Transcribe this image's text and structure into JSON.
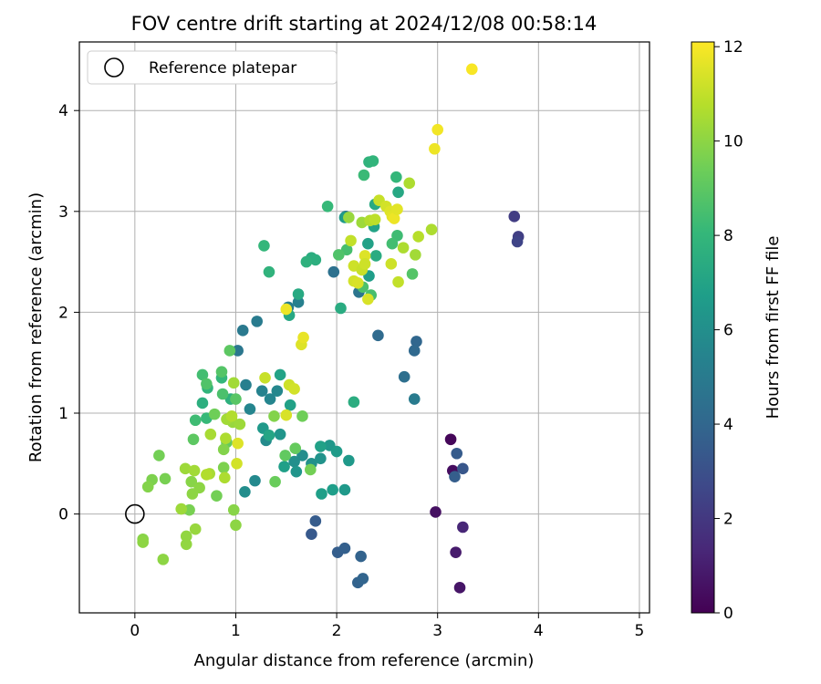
{
  "chart_data": {
    "type": "scatter",
    "title": "FOV centre drift starting at 2024/12/08 00:58:14",
    "xlabel": "Angular distance from reference (arcmin)",
    "ylabel": "Rotation from reference (arcmin)",
    "xlim": [
      -0.55,
      5.1
    ],
    "ylim": [
      -0.98,
      4.68
    ],
    "xticks": [
      "0",
      "1",
      "2",
      "3",
      "4",
      "5"
    ],
    "yticks": [
      "0",
      "1",
      "2",
      "3",
      "4"
    ],
    "grid": true,
    "legend": {
      "placement": "top-left",
      "label": "Reference platepar"
    },
    "reference_point": {
      "x": 0,
      "y": 0
    },
    "colorbar": {
      "label": "Hours from first FF file",
      "min": 0,
      "max": 12.1,
      "ticks": [
        "0",
        "2",
        "4",
        "6",
        "8",
        "10",
        "12"
      ],
      "colormap": [
        "#440154",
        "#482878",
        "#3e4989",
        "#31688e",
        "#26828e",
        "#1f9e89",
        "#35b779",
        "#6ece58",
        "#b5de2b",
        "#fde725"
      ]
    },
    "points": [
      {
        "x": 3.13,
        "y": 0.74,
        "t": 0.2
      },
      {
        "x": 3.15,
        "y": 0.43,
        "t": 0.4
      },
      {
        "x": 2.98,
        "y": 0.02,
        "t": 0.5
      },
      {
        "x": 3.22,
        "y": -0.73,
        "t": 0.7
      },
      {
        "x": 3.18,
        "y": -0.38,
        "t": 0.9
      },
      {
        "x": 3.25,
        "y": -0.13,
        "t": 1.3
      },
      {
        "x": 3.76,
        "y": 2.95,
        "t": 2.2
      },
      {
        "x": 3.8,
        "y": 2.75,
        "t": 2.3
      },
      {
        "x": 3.79,
        "y": 2.7,
        "t": 2.5
      },
      {
        "x": 3.25,
        "y": 0.45,
        "t": 3.3
      },
      {
        "x": 3.19,
        "y": 0.6,
        "t": 3.5
      },
      {
        "x": 3.17,
        "y": 0.37,
        "t": 3.6
      },
      {
        "x": 1.75,
        "y": -0.2,
        "t": 3.4
      },
      {
        "x": 1.79,
        "y": -0.07,
        "t": 3.5
      },
      {
        "x": 2.01,
        "y": -0.38,
        "t": 3.6
      },
      {
        "x": 2.08,
        "y": -0.34,
        "t": 3.7
      },
      {
        "x": 2.21,
        "y": -0.68,
        "t": 3.8
      },
      {
        "x": 2.26,
        "y": -0.64,
        "t": 3.9
      },
      {
        "x": 2.24,
        "y": -0.42,
        "t": 3.8
      },
      {
        "x": 2.79,
        "y": 1.71,
        "t": 4.0
      },
      {
        "x": 2.77,
        "y": 1.62,
        "t": 4.1
      },
      {
        "x": 2.41,
        "y": 1.77,
        "t": 4.2
      },
      {
        "x": 2.67,
        "y": 1.36,
        "t": 4.4
      },
      {
        "x": 2.77,
        "y": 1.14,
        "t": 5.0
      },
      {
        "x": 1.97,
        "y": 2.4,
        "t": 4.5
      },
      {
        "x": 2.22,
        "y": 2.2,
        "t": 4.7
      },
      {
        "x": 2.09,
        "y": 2.95,
        "t": 4.6
      },
      {
        "x": 1.02,
        "y": 1.62,
        "t": 4.8
      },
      {
        "x": 1.07,
        "y": 1.82,
        "t": 4.9
      },
      {
        "x": 1.21,
        "y": 1.91,
        "t": 5.0
      },
      {
        "x": 1.52,
        "y": 2.05,
        "t": 5.1
      },
      {
        "x": 1.62,
        "y": 2.1,
        "t": 5.3
      },
      {
        "x": 1.1,
        "y": 1.28,
        "t": 5.2
      },
      {
        "x": 1.26,
        "y": 1.22,
        "t": 5.4
      },
      {
        "x": 1.34,
        "y": 1.14,
        "t": 5.5
      },
      {
        "x": 1.41,
        "y": 1.22,
        "t": 5.6
      },
      {
        "x": 1.14,
        "y": 1.04,
        "t": 5.5
      },
      {
        "x": 1.3,
        "y": 0.73,
        "t": 5.8
      },
      {
        "x": 1.19,
        "y": 0.33,
        "t": 5.7
      },
      {
        "x": 1.09,
        "y": 0.22,
        "t": 5.9
      },
      {
        "x": 1.58,
        "y": 0.52,
        "t": 6.0
      },
      {
        "x": 1.66,
        "y": 0.58,
        "t": 5.9
      },
      {
        "x": 1.75,
        "y": 0.5,
        "t": 6.1
      },
      {
        "x": 1.6,
        "y": 0.42,
        "t": 6.3
      },
      {
        "x": 1.84,
        "y": 0.55,
        "t": 6.2
      },
      {
        "x": 1.93,
        "y": 0.68,
        "t": 6.4
      },
      {
        "x": 2.12,
        "y": 0.53,
        "t": 6.5
      },
      {
        "x": 2.0,
        "y": 0.62,
        "t": 6.6
      },
      {
        "x": 1.96,
        "y": 0.24,
        "t": 6.7
      },
      {
        "x": 2.08,
        "y": 0.24,
        "t": 6.5
      },
      {
        "x": 1.85,
        "y": 0.2,
        "t": 6.8
      },
      {
        "x": 1.84,
        "y": 0.67,
        "t": 6.9
      },
      {
        "x": 1.48,
        "y": 0.47,
        "t": 6.8
      },
      {
        "x": 1.54,
        "y": 1.08,
        "t": 6.9
      },
      {
        "x": 1.44,
        "y": 0.79,
        "t": 6.3
      },
      {
        "x": 1.27,
        "y": 0.85,
        "t": 6.5
      },
      {
        "x": 1.44,
        "y": 1.38,
        "t": 7.0
      },
      {
        "x": 1.33,
        "y": 0.78,
        "t": 7.1
      },
      {
        "x": 1.53,
        "y": 1.97,
        "t": 7.2
      },
      {
        "x": 1.62,
        "y": 2.18,
        "t": 7.3
      },
      {
        "x": 2.04,
        "y": 2.04,
        "t": 7.4
      },
      {
        "x": 2.17,
        "y": 1.11,
        "t": 7.5
      },
      {
        "x": 2.32,
        "y": 2.36,
        "t": 6.7
      },
      {
        "x": 2.08,
        "y": 2.94,
        "t": 6.6
      },
      {
        "x": 2.31,
        "y": 2.68,
        "t": 6.9
      },
      {
        "x": 2.37,
        "y": 2.85,
        "t": 7.0
      },
      {
        "x": 2.61,
        "y": 3.19,
        "t": 7.2
      },
      {
        "x": 2.38,
        "y": 3.07,
        "t": 7.3
      },
      {
        "x": 2.39,
        "y": 2.56,
        "t": 7.4
      },
      {
        "x": 1.75,
        "y": 2.54,
        "t": 7.5
      },
      {
        "x": 1.79,
        "y": 2.52,
        "t": 7.6
      },
      {
        "x": 1.7,
        "y": 2.5,
        "t": 7.7
      },
      {
        "x": 2.32,
        "y": 3.49,
        "t": 7.8
      },
      {
        "x": 2.36,
        "y": 3.5,
        "t": 7.9
      },
      {
        "x": 2.59,
        "y": 3.34,
        "t": 8.0
      },
      {
        "x": 2.27,
        "y": 3.36,
        "t": 8.2
      },
      {
        "x": 2.6,
        "y": 2.76,
        "t": 8.3
      },
      {
        "x": 2.55,
        "y": 2.68,
        "t": 8.4
      },
      {
        "x": 2.34,
        "y": 2.17,
        "t": 8.5
      },
      {
        "x": 2.26,
        "y": 2.25,
        "t": 8.6
      },
      {
        "x": 1.33,
        "y": 2.4,
        "t": 7.8
      },
      {
        "x": 1.28,
        "y": 2.66,
        "t": 8.0
      },
      {
        "x": 1.91,
        "y": 3.05,
        "t": 8.1
      },
      {
        "x": 2.1,
        "y": 2.62,
        "t": 8.5
      },
      {
        "x": 2.02,
        "y": 2.57,
        "t": 8.7
      },
      {
        "x": 2.75,
        "y": 2.38,
        "t": 8.8
      },
      {
        "x": 0.72,
        "y": 1.25,
        "t": 7.9
      },
      {
        "x": 0.67,
        "y": 1.1,
        "t": 7.6
      },
      {
        "x": 0.86,
        "y": 1.35,
        "t": 8.0
      },
      {
        "x": 0.71,
        "y": 0.95,
        "t": 8.1
      },
      {
        "x": 0.95,
        "y": 1.14,
        "t": 7.7
      },
      {
        "x": 0.6,
        "y": 0.93,
        "t": 8.3
      },
      {
        "x": 0.67,
        "y": 1.38,
        "t": 8.4
      },
      {
        "x": 0.87,
        "y": 1.19,
        "t": 8.6
      },
      {
        "x": 0.71,
        "y": 1.29,
        "t": 8.7
      },
      {
        "x": 0.86,
        "y": 1.41,
        "t": 8.8
      },
      {
        "x": 1.0,
        "y": 1.14,
        "t": 8.9
      },
      {
        "x": 0.94,
        "y": 1.62,
        "t": 9.0
      },
      {
        "x": 1.49,
        "y": 0.58,
        "t": 9.1
      },
      {
        "x": 1.59,
        "y": 0.65,
        "t": 9.2
      },
      {
        "x": 1.39,
        "y": 0.32,
        "t": 9.3
      },
      {
        "x": 1.66,
        "y": 0.97,
        "t": 9.4
      },
      {
        "x": 1.74,
        "y": 0.44,
        "t": 9.5
      },
      {
        "x": 0.58,
        "y": 0.74,
        "t": 9.0
      },
      {
        "x": 0.91,
        "y": 0.71,
        "t": 9.2
      },
      {
        "x": 0.79,
        "y": 0.99,
        "t": 9.4
      },
      {
        "x": 0.81,
        "y": 0.18,
        "t": 9.5
      },
      {
        "x": 0.54,
        "y": 0.04,
        "t": 9.6
      },
      {
        "x": 0.88,
        "y": 0.46,
        "t": 9.7
      },
      {
        "x": 0.88,
        "y": 0.64,
        "t": 9.8
      },
      {
        "x": 0.56,
        "y": 0.32,
        "t": 9.9
      },
      {
        "x": 0.24,
        "y": 0.58,
        "t": 9.5
      },
      {
        "x": 0.17,
        "y": 0.34,
        "t": 9.7
      },
      {
        "x": 0.3,
        "y": 0.35,
        "t": 9.6
      },
      {
        "x": 0.13,
        "y": 0.27,
        "t": 9.8
      },
      {
        "x": 0.08,
        "y": -0.25,
        "t": 9.9
      },
      {
        "x": 0.08,
        "y": -0.28,
        "t": 10.0
      },
      {
        "x": 0.28,
        "y": -0.45,
        "t": 10.0
      },
      {
        "x": 0.51,
        "y": -0.22,
        "t": 10.1
      },
      {
        "x": 0.51,
        "y": -0.3,
        "t": 10.1
      },
      {
        "x": 0.6,
        "y": -0.15,
        "t": 10.2
      },
      {
        "x": 1.0,
        "y": -0.11,
        "t": 10.0
      },
      {
        "x": 0.98,
        "y": 0.04,
        "t": 9.9
      },
      {
        "x": 0.64,
        "y": 0.26,
        "t": 10.0
      },
      {
        "x": 0.57,
        "y": 0.2,
        "t": 10.0
      },
      {
        "x": 0.46,
        "y": 0.05,
        "t": 10.3
      },
      {
        "x": 0.5,
        "y": 0.45,
        "t": 10.3
      },
      {
        "x": 0.59,
        "y": 0.43,
        "t": 10.4
      },
      {
        "x": 0.74,
        "y": 0.4,
        "t": 10.5
      },
      {
        "x": 0.71,
        "y": 0.39,
        "t": 10.7
      },
      {
        "x": 0.89,
        "y": 0.36,
        "t": 10.6
      },
      {
        "x": 0.97,
        "y": 0.91,
        "t": 10.2
      },
      {
        "x": 1.04,
        "y": 0.89,
        "t": 10.3
      },
      {
        "x": 0.91,
        "y": 0.94,
        "t": 10.4
      },
      {
        "x": 0.75,
        "y": 0.79,
        "t": 10.5
      },
      {
        "x": 0.9,
        "y": 0.75,
        "t": 10.6
      },
      {
        "x": 0.98,
        "y": 1.3,
        "t": 10.4
      },
      {
        "x": 1.38,
        "y": 0.97,
        "t": 9.8
      },
      {
        "x": 0.96,
        "y": 0.97,
        "t": 10.7
      },
      {
        "x": 1.01,
        "y": 0.5,
        "t": 11.3
      },
      {
        "x": 1.02,
        "y": 0.7,
        "t": 11.5
      },
      {
        "x": 1.29,
        "y": 1.35,
        "t": 11.1
      },
      {
        "x": 1.53,
        "y": 1.28,
        "t": 11.2
      },
      {
        "x": 1.58,
        "y": 1.24,
        "t": 11.3
      },
      {
        "x": 1.5,
        "y": 0.98,
        "t": 11.4
      },
      {
        "x": 1.65,
        "y": 1.68,
        "t": 11.5
      },
      {
        "x": 1.67,
        "y": 1.75,
        "t": 11.7
      },
      {
        "x": 1.5,
        "y": 2.03,
        "t": 11.8
      },
      {
        "x": 2.14,
        "y": 2.71,
        "t": 11.0
      },
      {
        "x": 2.17,
        "y": 2.46,
        "t": 11.2
      },
      {
        "x": 2.17,
        "y": 2.31,
        "t": 11.3
      },
      {
        "x": 2.21,
        "y": 2.29,
        "t": 11.4
      },
      {
        "x": 2.25,
        "y": 2.42,
        "t": 11.1
      },
      {
        "x": 2.28,
        "y": 2.56,
        "t": 11.5
      },
      {
        "x": 2.28,
        "y": 2.48,
        "t": 11.2
      },
      {
        "x": 2.31,
        "y": 2.13,
        "t": 11.4
      },
      {
        "x": 2.25,
        "y": 2.89,
        "t": 10.3
      },
      {
        "x": 2.33,
        "y": 2.91,
        "t": 10.7
      },
      {
        "x": 2.38,
        "y": 2.92,
        "t": 10.9
      },
      {
        "x": 2.42,
        "y": 3.11,
        "t": 11.1
      },
      {
        "x": 2.12,
        "y": 2.94,
        "t": 10.2
      },
      {
        "x": 2.49,
        "y": 3.05,
        "t": 11.3
      },
      {
        "x": 2.53,
        "y": 3.0,
        "t": 11.5
      },
      {
        "x": 2.55,
        "y": 2.95,
        "t": 11.6
      },
      {
        "x": 2.57,
        "y": 2.93,
        "t": 11.8
      },
      {
        "x": 2.6,
        "y": 3.02,
        "t": 11.6
      },
      {
        "x": 2.54,
        "y": 2.48,
        "t": 11.2
      },
      {
        "x": 2.61,
        "y": 2.3,
        "t": 11.0
      },
      {
        "x": 2.66,
        "y": 2.64,
        "t": 10.6
      },
      {
        "x": 2.72,
        "y": 3.28,
        "t": 10.6
      },
      {
        "x": 2.78,
        "y": 2.57,
        "t": 10.4
      },
      {
        "x": 2.81,
        "y": 2.75,
        "t": 10.8
      },
      {
        "x": 2.94,
        "y": 2.82,
        "t": 10.6
      },
      {
        "x": 2.97,
        "y": 3.62,
        "t": 11.8
      },
      {
        "x": 3.0,
        "y": 3.81,
        "t": 11.9
      },
      {
        "x": 3.34,
        "y": 4.41,
        "t": 12.0
      }
    ]
  }
}
